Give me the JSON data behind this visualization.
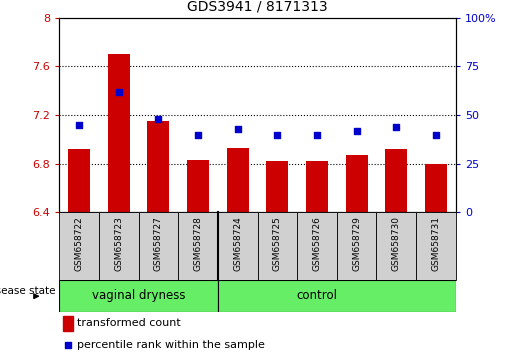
{
  "title": "GDS3941 / 8171313",
  "samples": [
    "GSM658722",
    "GSM658723",
    "GSM658727",
    "GSM658728",
    "GSM658724",
    "GSM658725",
    "GSM658726",
    "GSM658729",
    "GSM658730",
    "GSM658731"
  ],
  "transformed_count": [
    6.92,
    7.7,
    7.15,
    6.83,
    6.93,
    6.82,
    6.82,
    6.87,
    6.92,
    6.8
  ],
  "percentile_rank": [
    45,
    62,
    48,
    40,
    43,
    40,
    40,
    42,
    44,
    40
  ],
  "ylim_left": [
    6.4,
    8.0
  ],
  "ylim_right": [
    0,
    100
  ],
  "yticks_left": [
    6.4,
    6.8,
    7.2,
    7.6,
    8.0
  ],
  "ytick_labels_left": [
    "6.4",
    "6.8",
    "7.2",
    "7.6",
    "8"
  ],
  "yticks_right": [
    0,
    25,
    50,
    75,
    100
  ],
  "ytick_labels_right": [
    "0",
    "25",
    "50",
    "75",
    "100%"
  ],
  "group_vaginal_label": "vaginal dryness",
  "group_control_label": "control",
  "group_color": "#66ee66",
  "bar_color": "#cc0000",
  "dot_color": "#0000cc",
  "bar_width": 0.55,
  "grid_color": "black",
  "legend_bar_label": "transformed count",
  "legend_dot_label": "percentile rank within the sample",
  "disease_state_label": "disease state",
  "background_color": "white",
  "sample_box_color": "#d0d0d0",
  "n_vaginal": 4,
  "n_control": 6
}
